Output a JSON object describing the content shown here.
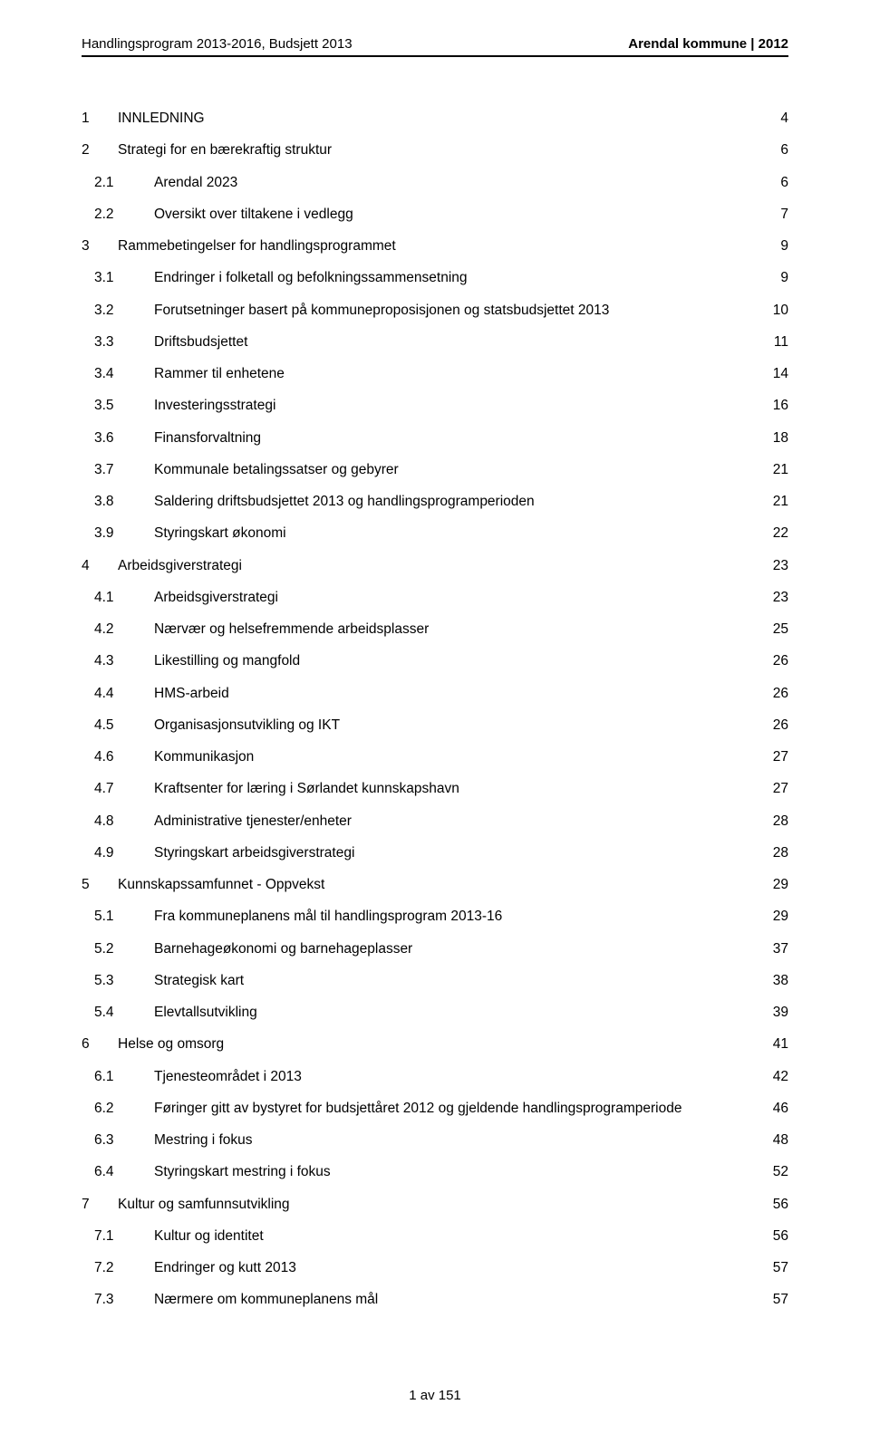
{
  "header": {
    "left": "Handlingsprogram 2013-2016, Budsjett 2013",
    "right": "Arendal kommune | 2012"
  },
  "toc": [
    {
      "level": 1,
      "num": "1",
      "title": "INNLEDNING",
      "page": "4"
    },
    {
      "level": 1,
      "num": "2",
      "title": "Strategi for en bærekraftig struktur",
      "page": "6"
    },
    {
      "level": 2,
      "num": "2.1",
      "title": "Arendal 2023",
      "page": "6"
    },
    {
      "level": 2,
      "num": "2.2",
      "title": "Oversikt over tiltakene i vedlegg",
      "page": "7"
    },
    {
      "level": 1,
      "num": "3",
      "title": "Rammebetingelser for handlingsprogrammet",
      "page": "9"
    },
    {
      "level": 2,
      "num": "3.1",
      "title": "Endringer i folketall og befolkningssammensetning",
      "page": "9"
    },
    {
      "level": 2,
      "num": "3.2",
      "title": "Forutsetninger basert på kommuneproposisjonen og statsbudsjettet 2013",
      "page": "10"
    },
    {
      "level": 2,
      "num": "3.3",
      "title": "Driftsbudsjettet",
      "page": "11"
    },
    {
      "level": 2,
      "num": "3.4",
      "title": "Rammer til enhetene",
      "page": "14"
    },
    {
      "level": 2,
      "num": "3.5",
      "title": "Investeringsstrategi",
      "page": "16"
    },
    {
      "level": 2,
      "num": "3.6",
      "title": "Finansforvaltning",
      "page": "18"
    },
    {
      "level": 2,
      "num": "3.7",
      "title": "Kommunale betalingssatser og gebyrer",
      "page": "21"
    },
    {
      "level": 2,
      "num": "3.8",
      "title": "Saldering driftsbudsjettet 2013 og handlingsprogramperioden",
      "page": "21"
    },
    {
      "level": 2,
      "num": "3.9",
      "title": "Styringskart økonomi",
      "page": "22"
    },
    {
      "level": 1,
      "num": "4",
      "title": "Arbeidsgiverstrategi",
      "page": "23"
    },
    {
      "level": 2,
      "num": "4.1",
      "title": "Arbeidsgiverstrategi",
      "page": "23"
    },
    {
      "level": 2,
      "num": "4.2",
      "title": "Nærvær og helsefremmende arbeidsplasser",
      "page": "25"
    },
    {
      "level": 2,
      "num": "4.3",
      "title": "Likestilling og mangfold",
      "page": "26"
    },
    {
      "level": 2,
      "num": "4.4",
      "title": "HMS-arbeid",
      "page": "26"
    },
    {
      "level": 2,
      "num": "4.5",
      "title": "Organisasjonsutvikling og IKT",
      "page": "26"
    },
    {
      "level": 2,
      "num": "4.6",
      "title": "Kommunikasjon",
      "page": "27"
    },
    {
      "level": 2,
      "num": "4.7",
      "title": "Kraftsenter for læring i Sørlandet kunnskapshavn",
      "page": "27"
    },
    {
      "level": 2,
      "num": "4.8",
      "title": "Administrative tjenester/enheter",
      "page": "28"
    },
    {
      "level": 2,
      "num": "4.9",
      "title": "Styringskart arbeidsgiverstrategi",
      "page": "28"
    },
    {
      "level": 1,
      "num": "5",
      "title": "Kunnskapssamfunnet - Oppvekst",
      "page": "29"
    },
    {
      "level": 2,
      "num": "5.1",
      "title": "Fra kommuneplanens mål til handlingsprogram 2013-16",
      "page": "29"
    },
    {
      "level": 2,
      "num": "5.2",
      "title": "Barnehageøkonomi og barnehageplasser",
      "page": "37"
    },
    {
      "level": 2,
      "num": "5.3",
      "title": "Strategisk kart",
      "page": "38"
    },
    {
      "level": 2,
      "num": "5.4",
      "title": "Elevtallsutvikling",
      "page": "39"
    },
    {
      "level": 1,
      "num": "6",
      "title": "Helse og omsorg",
      "page": "41"
    },
    {
      "level": 2,
      "num": "6.1",
      "title": "Tjenesteområdet i 2013",
      "page": "42"
    },
    {
      "level": 2,
      "num": "6.2",
      "title": "Føringer gitt av bystyret for budsjettåret 2012 og gjeldende handlingsprogramperiode",
      "page": "46"
    },
    {
      "level": 2,
      "num": "6.3",
      "title": "Mestring i fokus",
      "page": "48"
    },
    {
      "level": 2,
      "num": "6.4",
      "title": "Styringskart mestring i fokus",
      "page": "52"
    },
    {
      "level": 1,
      "num": "7",
      "title": "Kultur og samfunnsutvikling",
      "page": "56"
    },
    {
      "level": 2,
      "num": "7.1",
      "title": "Kultur og identitet",
      "page": "56"
    },
    {
      "level": 2,
      "num": "7.2",
      "title": "Endringer og kutt 2013",
      "page": "57"
    },
    {
      "level": 2,
      "num": "7.3",
      "title": "Nærmere om kommuneplanens mål",
      "page": "57"
    }
  ],
  "footer": "1 av 151"
}
